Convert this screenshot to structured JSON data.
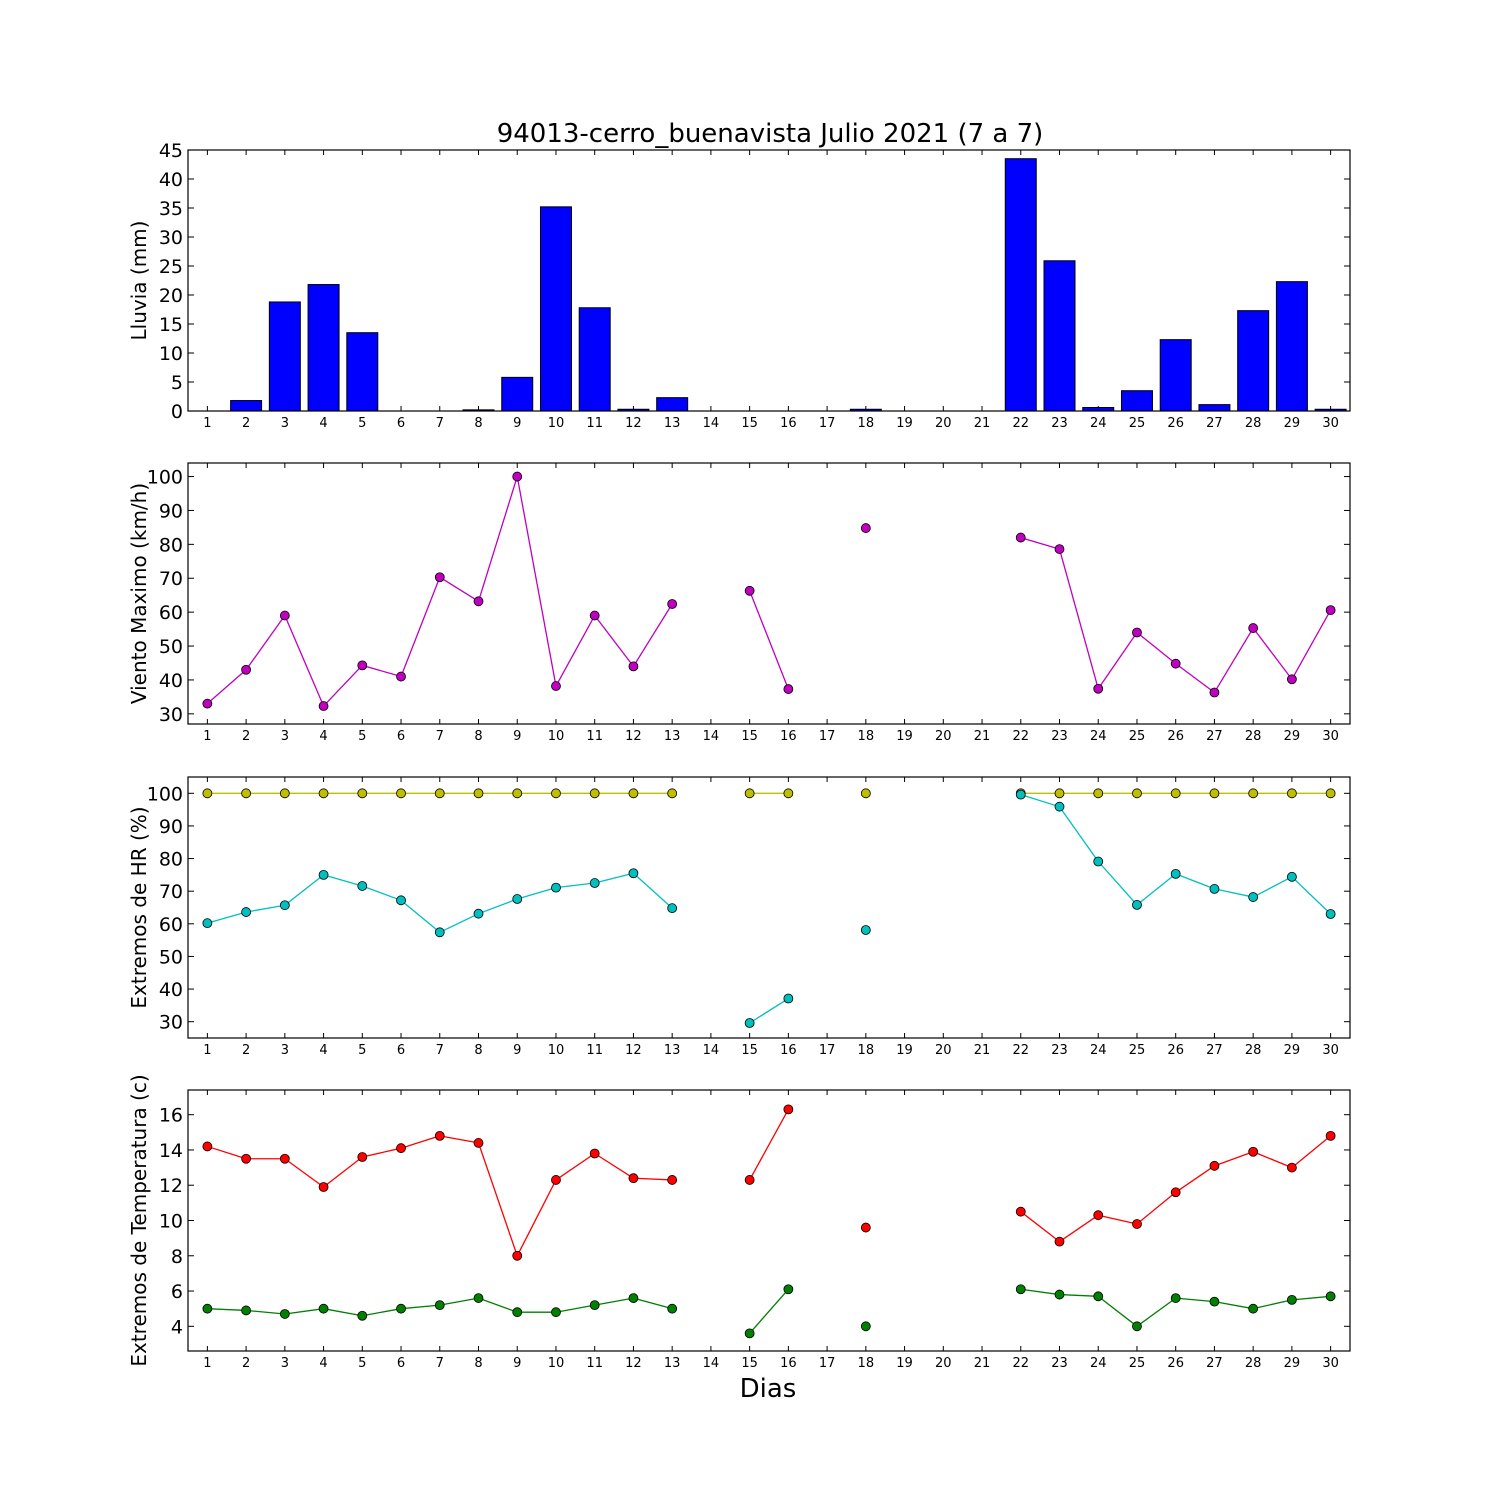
{
  "title": "94013-cerro_buenavista Julio 2021  (7 a 7)",
  "xlabel": "Dias",
  "colors": {
    "rain": "#0000ff",
    "wind": "#bf00bf",
    "hr_max": "#bfbf00",
    "hr_min": "#00bfbf",
    "t_max": "#ff0000",
    "t_min": "#008000"
  },
  "chart_data": [
    {
      "type": "bar",
      "ylabel": "Lluvia (mm)",
      "ylim": [
        0,
        45
      ],
      "yticks": [
        "0",
        "5",
        "10",
        "15",
        "20",
        "25",
        "30",
        "35",
        "40",
        "45"
      ],
      "xticks": [
        "1",
        "2",
        "3",
        "4",
        "5",
        "6",
        "7",
        "8",
        "9",
        "10",
        "11",
        "12",
        "13",
        "14",
        "15",
        "16",
        "17",
        "18",
        "19",
        "20",
        "21",
        "22",
        "23",
        "24",
        "25",
        "26",
        "27",
        "28",
        "29",
        "30"
      ],
      "x": [
        1,
        2,
        3,
        4,
        5,
        6,
        7,
        8,
        9,
        10,
        11,
        12,
        13,
        14,
        15,
        16,
        17,
        18,
        19,
        20,
        21,
        22,
        23,
        24,
        25,
        26,
        27,
        28,
        29,
        30
      ],
      "values": [
        0,
        1.8,
        18.8,
        21.8,
        13.5,
        0,
        0,
        0.2,
        5.8,
        35.2,
        17.8,
        0.3,
        2.3,
        0,
        0,
        0,
        0,
        0.3,
        0,
        0,
        0,
        43.5,
        25.9,
        0.6,
        3.5,
        12.3,
        1.1,
        17.3,
        22.3,
        0.3
      ]
    },
    {
      "type": "line",
      "ylabel": "Viento Maximo (km/h)",
      "ylim": [
        27,
        104
      ],
      "yticks": [
        "30",
        "40",
        "50",
        "60",
        "70",
        "80",
        "90",
        "100"
      ],
      "xticks": [
        "1",
        "2",
        "3",
        "4",
        "5",
        "6",
        "7",
        "8",
        "9",
        "10",
        "11",
        "12",
        "13",
        "14",
        "15",
        "16",
        "17",
        "18",
        "19",
        "20",
        "21",
        "22",
        "23",
        "24",
        "25",
        "26",
        "27",
        "28",
        "29",
        "30"
      ],
      "x": [
        1,
        2,
        3,
        4,
        5,
        6,
        7,
        8,
        9,
        10,
        11,
        12,
        13,
        14,
        15,
        16,
        17,
        18,
        19,
        20,
        21,
        22,
        23,
        24,
        25,
        26,
        27,
        28,
        29,
        30
      ],
      "series": [
        {
          "values": [
            33,
            43,
            59,
            32.3,
            44.3,
            41,
            70.3,
            63.2,
            100,
            38.2,
            59,
            44,
            62.4,
            null,
            66.3,
            37.3,
            null,
            84.8,
            null,
            null,
            null,
            82,
            78.6,
            37.4,
            54,
            44.8,
            36.3,
            55.3,
            40.2,
            60.6
          ]
        }
      ]
    },
    {
      "type": "line",
      "ylabel": "Extremos de HR (%)",
      "ylim": [
        25,
        105
      ],
      "yticks": [
        "30",
        "40",
        "50",
        "60",
        "70",
        "80",
        "90",
        "100"
      ],
      "xticks": [
        "1",
        "2",
        "3",
        "4",
        "5",
        "6",
        "7",
        "8",
        "9",
        "10",
        "11",
        "12",
        "13",
        "14",
        "15",
        "16",
        "17",
        "18",
        "19",
        "20",
        "21",
        "22",
        "23",
        "24",
        "25",
        "26",
        "27",
        "28",
        "29",
        "30"
      ],
      "x": [
        1,
        2,
        3,
        4,
        5,
        6,
        7,
        8,
        9,
        10,
        11,
        12,
        13,
        14,
        15,
        16,
        17,
        18,
        19,
        20,
        21,
        22,
        23,
        24,
        25,
        26,
        27,
        28,
        29,
        30
      ],
      "series": [
        {
          "values": [
            100,
            100,
            100,
            100,
            100,
            100,
            100,
            100,
            100,
            100,
            100,
            100,
            100,
            null,
            100,
            100,
            null,
            100,
            null,
            null,
            null,
            100,
            100,
            100,
            100,
            100,
            100,
            100,
            100,
            100
          ]
        },
        {
          "values": [
            60.2,
            63.6,
            65.7,
            75,
            71.6,
            67.2,
            57.4,
            63.1,
            67.6,
            71.1,
            72.5,
            75.5,
            64.8,
            null,
            29.6,
            37.1,
            null,
            58.1,
            null,
            null,
            null,
            99.6,
            95.9,
            79.1,
            65.8,
            75.3,
            70.7,
            68.2,
            74.4,
            63
          ]
        }
      ]
    },
    {
      "type": "line",
      "ylabel": "Extremos de Temperatura (c)",
      "ylim": [
        2.6,
        17.4
      ],
      "yticks": [
        "4",
        "6",
        "8",
        "10",
        "12",
        "14",
        "16"
      ],
      "xticks": [
        "1",
        "2",
        "3",
        "4",
        "5",
        "6",
        "7",
        "8",
        "9",
        "10",
        "11",
        "12",
        "13",
        "14",
        "15",
        "16",
        "17",
        "18",
        "19",
        "20",
        "21",
        "22",
        "23",
        "24",
        "25",
        "26",
        "27",
        "28",
        "29",
        "30"
      ],
      "x": [
        1,
        2,
        3,
        4,
        5,
        6,
        7,
        8,
        9,
        10,
        11,
        12,
        13,
        14,
        15,
        16,
        17,
        18,
        19,
        20,
        21,
        22,
        23,
        24,
        25,
        26,
        27,
        28,
        29,
        30
      ],
      "series": [
        {
          "values": [
            14.2,
            13.5,
            13.5,
            11.9,
            13.6,
            14.1,
            14.8,
            14.4,
            8,
            12.3,
            13.8,
            12.4,
            12.3,
            null,
            12.3,
            16.3,
            null,
            9.6,
            null,
            null,
            null,
            10.5,
            8.8,
            10.3,
            9.8,
            11.6,
            13.1,
            13.9,
            13,
            14.8
          ]
        },
        {
          "values": [
            5,
            4.9,
            4.7,
            5,
            4.6,
            5,
            5.2,
            5.6,
            4.8,
            4.8,
            5.2,
            5.6,
            5,
            null,
            3.6,
            6.1,
            null,
            4,
            null,
            null,
            null,
            6.1,
            5.8,
            5.7,
            4,
            5.6,
            5.4,
            5,
            5.5,
            5.7
          ]
        }
      ]
    }
  ]
}
